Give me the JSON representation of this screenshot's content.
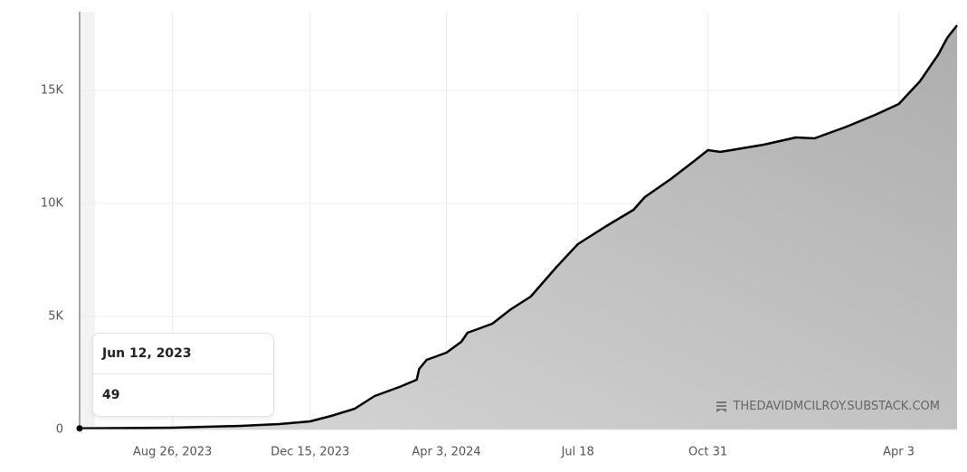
{
  "chart_data": {
    "type": "area",
    "color": "#000000",
    "fill_color": "#c4c4c4",
    "grid": true,
    "x": [
      "2023-06-12",
      "2023-08-26",
      "2023-10-20",
      "2023-11-20",
      "2023-12-15",
      "2024-01-01",
      "2024-01-20",
      "2024-02-05",
      "2024-02-25",
      "2024-03-10",
      "2024-03-12",
      "2024-03-18",
      "2024-04-03",
      "2024-04-15",
      "2024-04-20",
      "2024-05-10",
      "2024-05-25",
      "2024-06-10",
      "2024-07-01",
      "2024-07-18",
      "2024-08-10",
      "2024-09-01",
      "2024-09-10",
      "2024-10-01",
      "2024-10-20",
      "2024-10-31",
      "2024-11-10",
      "2024-12-15",
      "2025-01-10",
      "2025-01-25",
      "2025-02-20",
      "2025-03-15",
      "2025-04-03",
      "2025-04-20",
      "2025-05-05",
      "2025-05-12",
      "2025-05-20"
    ],
    "values": [
      49,
      80,
      160,
      240,
      360,
      600,
      920,
      1480,
      1880,
      2200,
      2680,
      3080,
      3400,
      3880,
      4280,
      4680,
      5320,
      5880,
      7200,
      8200,
      9000,
      9720,
      10280,
      11080,
      11880,
      12360,
      12280,
      12600,
      12920,
      12880,
      13400,
      13920,
      14400,
      15400,
      16600,
      17320,
      17880
    ],
    "xlim": [
      "2023-06-12",
      "2025-05-20"
    ],
    "ylim": [
      0,
      18480
    ],
    "xticks": [
      {
        "value": "2023-08-26",
        "label": "Aug 26, 2023"
      },
      {
        "value": "2023-12-15",
        "label": "Dec 15, 2023"
      },
      {
        "value": "2024-04-03",
        "label": "Apr 3, 2024"
      },
      {
        "value": "2024-07-18",
        "label": "Jul 18"
      },
      {
        "value": "2024-10-31",
        "label": "Oct 31"
      },
      {
        "value": "2025-04-03",
        "label": "Apr 3"
      }
    ],
    "yticks": [
      0,
      {
        "value": 5000,
        "label": "5K"
      },
      {
        "value": 10000,
        "label": "10K"
      },
      {
        "value": 15000,
        "label": "15K"
      }
    ],
    "tooltip": {
      "label": "Jun 12, 2023",
      "value": 49
    },
    "watermark": "THEDAVIDMCILROY.SUBSTACK.COM"
  }
}
